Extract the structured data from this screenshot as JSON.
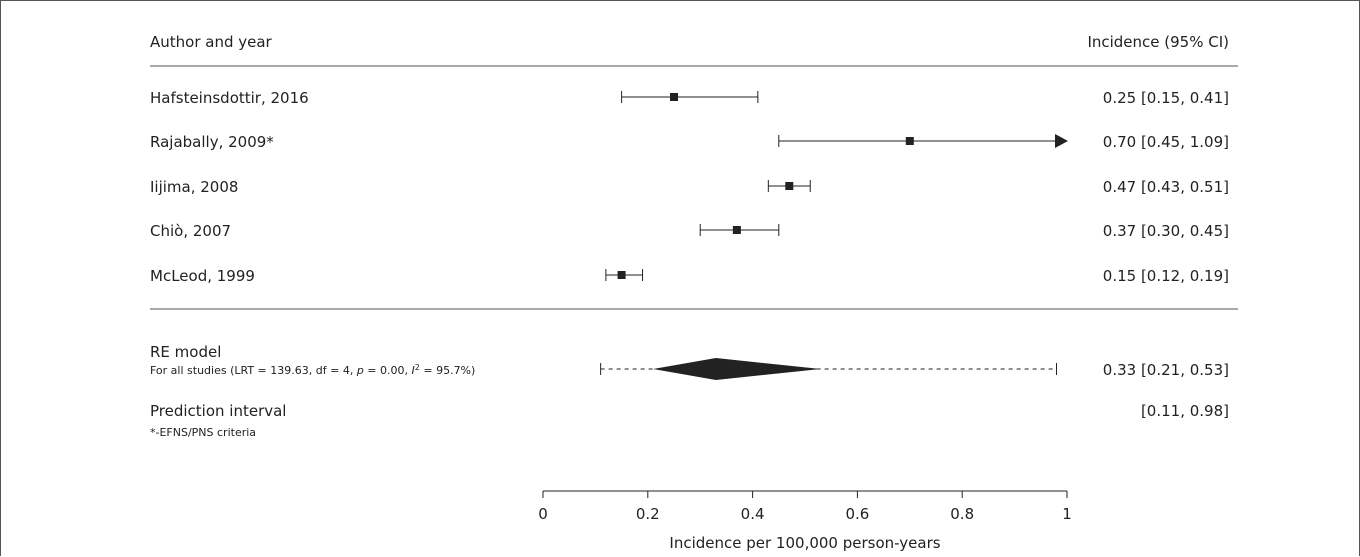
{
  "chart_data": {
    "type": "forest",
    "header": {
      "left": "Author and year",
      "right": "Incidence (95% CI)"
    },
    "studies": [
      {
        "label": "Hafsteinsdottir, 2016",
        "estimate": 0.25,
        "lower": 0.15,
        "upper": 0.41,
        "ci_text": "0.25 [0.15, 0.41]"
      },
      {
        "label": "Rajabally, 2009*",
        "estimate": 0.7,
        "lower": 0.45,
        "upper": 1.09,
        "ci_text": "0.70 [0.45, 1.09]",
        "arrow_right": true
      },
      {
        "label": "Iijima, 2008",
        "estimate": 0.47,
        "lower": 0.43,
        "upper": 0.51,
        "ci_text": "0.47 [0.43, 0.51]"
      },
      {
        "label": "Chiò, 2007",
        "estimate": 0.37,
        "lower": 0.3,
        "upper": 0.45,
        "ci_text": "0.37 [0.30, 0.45]"
      },
      {
        "label": "McLeod, 1999",
        "estimate": 0.15,
        "lower": 0.12,
        "upper": 0.19,
        "ci_text": "0.15 [0.12, 0.19]"
      }
    ],
    "summary": {
      "label": "RE model",
      "stats_prefix": "For all studies (LRT = 139.63, df = 4, ",
      "stats_p_symbol": "p",
      "stats_p_value": " = 0.00, ",
      "stats_i_symbol": "I",
      "stats_i_exp": "2",
      "stats_i_value": " = 95.7%)",
      "estimate": 0.33,
      "lower": 0.21,
      "upper": 0.53,
      "ci_text": "0.33 [0.21, 0.53]",
      "prediction_lower": 0.11,
      "prediction_upper": 0.98
    },
    "prediction": {
      "label": "Prediction interval",
      "ci_text": "[0.11, 0.98]"
    },
    "footnote": "*-EFNS/PNS criteria",
    "x_axis": {
      "label": "Incidence per 100,000 person-years",
      "range": [
        0,
        1
      ],
      "ticks": [
        0,
        0.2,
        0.4,
        0.6,
        0.8,
        1
      ],
      "tick_labels": [
        "0",
        "0.2",
        "0.4",
        "0.6",
        "0.8",
        "1"
      ]
    },
    "colors": {
      "ink": "#222222",
      "rule": "#555555"
    }
  }
}
